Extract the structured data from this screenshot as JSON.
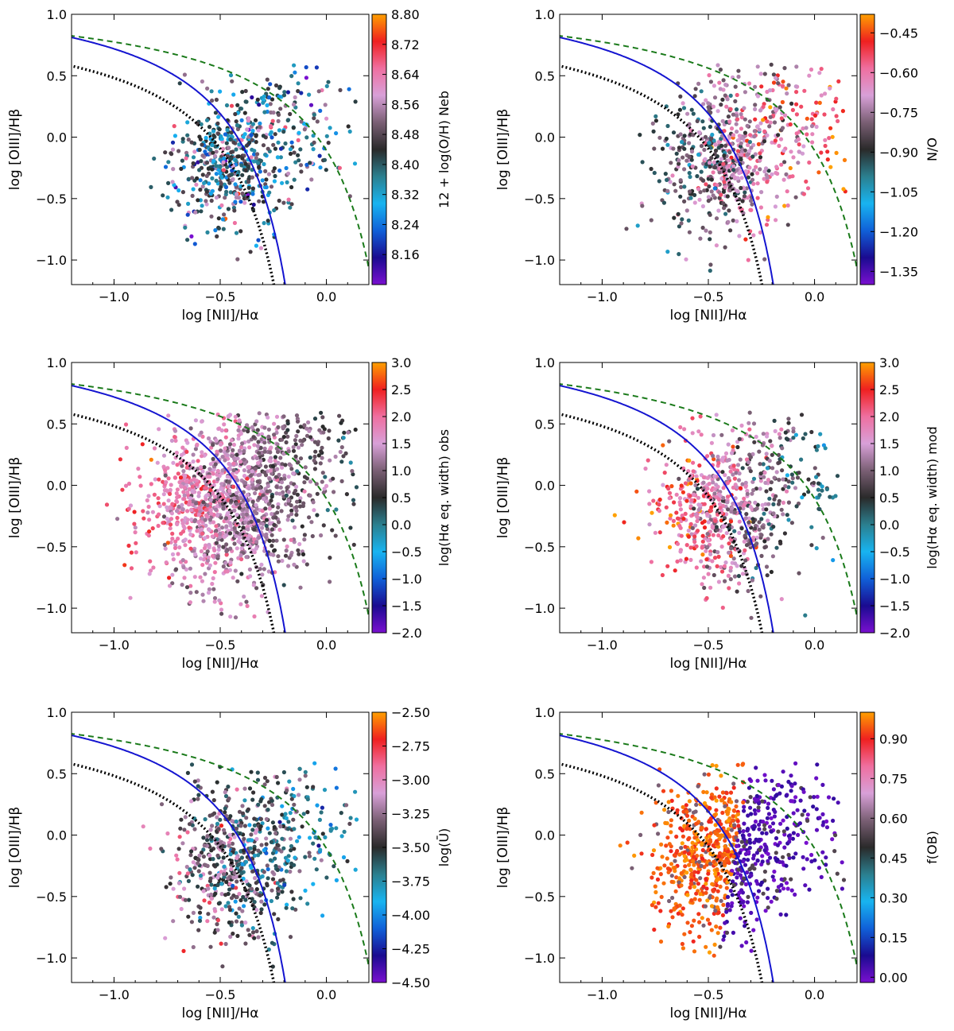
{
  "figure": {
    "xlabel": "log [NII]/Hα",
    "ylabel": "log [OIII]/Hβ"
  },
  "colormap": [
    "#7a10d0",
    "#1a0b90",
    "#1060d8",
    "#18b4f0",
    "#2b7f8f",
    "#2a2a2a",
    "#7a5f74",
    "#d8a0d8",
    "#ef6fa0",
    "#ef2020",
    "#ffa000"
  ],
  "chart_data": [
    {
      "id": "panel-oh",
      "type": "scatter",
      "title": "",
      "xlabel": "log [NII]/Hα",
      "ylabel": "log [OIII]/Hβ",
      "xlim": [
        -1.2,
        0.2
      ],
      "ylim": [
        -1.2,
        1.0
      ],
      "xticks": [
        -1.0,
        -0.5,
        0.0
      ],
      "xtick_labels": [
        "−1.0",
        "−0.5",
        "0.0"
      ],
      "yticks": [
        1.0,
        0.5,
        0.0,
        -0.5,
        -1.0
      ],
      "ytick_labels": [
        "1.0",
        "0.5",
        "0.0",
        "−0.5",
        "−1.0"
      ],
      "colorbar": {
        "label": "12 + log(O/H) Neb",
        "range": [
          8.08,
          8.8
        ],
        "ticks": [
          8.8,
          8.72,
          8.64,
          8.56,
          8.48,
          8.4,
          8.32,
          8.24,
          8.16
        ],
        "tick_labels": [
          "8.80",
          "8.72",
          "8.64",
          "8.56",
          "8.48",
          "8.40",
          "8.32",
          "8.24",
          "8.16"
        ]
      },
      "distribution": {
        "n": 650,
        "x_mean": -0.45,
        "x_sd": 0.13,
        "y_mean": -0.22,
        "y_sd": 0.28,
        "color_mean": 0.47,
        "color_sd": 0.16,
        "color_trend": 0.0
      },
      "curves": [
        "kewley",
        "kauffmann",
        "stasinska"
      ]
    },
    {
      "id": "panel-no",
      "type": "scatter",
      "title": "",
      "xlabel": "log [NII]/Hα",
      "ylabel": "log [OIII]/Hβ",
      "xlim": [
        -1.2,
        0.2
      ],
      "ylim": [
        -1.2,
        1.0
      ],
      "xticks": [
        -1.0,
        -0.5,
        0.0
      ],
      "xtick_labels": [
        "−1.0",
        "−0.5",
        "0.0"
      ],
      "yticks": [
        1.0,
        0.5,
        0.0,
        -0.5,
        -1.0
      ],
      "ytick_labels": [
        "1.0",
        "0.5",
        "0.0",
        "−0.5",
        "−1.0"
      ],
      "colorbar": {
        "label": "N/O",
        "range": [
          -1.4,
          -0.38
        ],
        "ticks": [
          -0.45,
          -0.6,
          -0.75,
          -0.9,
          -1.05,
          -1.2,
          -1.35
        ],
        "tick_labels": [
          "−0.45",
          "−0.60",
          "−0.75",
          "−0.90",
          "−1.05",
          "−1.20",
          "−1.35"
        ]
      },
      "distribution": {
        "n": 750,
        "x_mean": -0.43,
        "x_sd": 0.15,
        "y_mean": -0.2,
        "y_sd": 0.3,
        "color_mean": 0.62,
        "color_sd": 0.12,
        "color_trend": 0.9
      },
      "curves": [
        "kewley",
        "kauffmann",
        "stasinska"
      ]
    },
    {
      "id": "panel-ew-obs",
      "type": "scatter",
      "title": "",
      "xlabel": "log [NII]/Hα",
      "ylabel": "log [OIII]/Hβ",
      "xlim": [
        -1.2,
        0.2
      ],
      "ylim": [
        -1.2,
        1.0
      ],
      "xticks": [
        -1.0,
        -0.5,
        0.0
      ],
      "xtick_labels": [
        "−1.0",
        "−0.5",
        "0.0"
      ],
      "yticks": [
        1.0,
        0.5,
        0.0,
        -0.5,
        -1.0
      ],
      "ytick_labels": [
        "1.0",
        "0.5",
        "0.0",
        "−0.5",
        "−1.0"
      ],
      "colorbar": {
        "label": "log(Hα eq. width) obs",
        "range": [
          -2.0,
          3.0
        ],
        "ticks": [
          3.0,
          2.5,
          2.0,
          1.5,
          1.0,
          0.5,
          0.0,
          -0.5,
          -1.0,
          -1.5,
          -2.0
        ],
        "tick_labels": [
          "3.0",
          "2.5",
          "2.0",
          "1.5",
          "1.0",
          "0.5",
          "0.0",
          "−0.5",
          "−1.0",
          "−1.5",
          "−2.0"
        ]
      },
      "distribution": {
        "n": 1500,
        "x_mean": -0.48,
        "x_sd": 0.18,
        "y_mean": -0.15,
        "y_sd": 0.33,
        "color_mean": 0.68,
        "color_sd": 0.07,
        "color_trend": -0.55
      },
      "curves": [
        "kewley",
        "kauffmann",
        "stasinska"
      ]
    },
    {
      "id": "panel-ew-mod",
      "type": "scatter",
      "title": "",
      "xlabel": "log [NII]/Hα",
      "ylabel": "log [OIII]/Hβ",
      "xlim": [
        -1.2,
        0.2
      ],
      "ylim": [
        -1.2,
        1.0
      ],
      "xticks": [
        -1.0,
        -0.5,
        0.0
      ],
      "xtick_labels": [
        "−1.0",
        "−0.5",
        "0.0"
      ],
      "yticks": [
        1.0,
        0.5,
        0.0,
        -0.5,
        -1.0
      ],
      "ytick_labels": [
        "1.0",
        "0.5",
        "0.0",
        "−0.5",
        "−1.0"
      ],
      "colorbar": {
        "label": "log(Hα eq. width) mod",
        "range": [
          -2.0,
          3.0
        ],
        "ticks": [
          3.0,
          2.5,
          2.0,
          1.5,
          1.0,
          0.5,
          0.0,
          -0.5,
          -1.0,
          -1.5,
          -2.0
        ],
        "tick_labels": [
          "3.0",
          "2.5",
          "2.0",
          "1.5",
          "1.0",
          "0.5",
          "0.0",
          "−0.5",
          "−1.0",
          "−1.5",
          "−2.0"
        ]
      },
      "distribution": {
        "n": 750,
        "x_mean": -0.45,
        "x_sd": 0.15,
        "y_mean": -0.2,
        "y_sd": 0.3,
        "color_mean": 0.72,
        "color_sd": 0.1,
        "color_trend": -1.1
      },
      "curves": [
        "kewley",
        "kauffmann",
        "stasinska"
      ]
    },
    {
      "id": "panel-u",
      "type": "scatter",
      "title": "",
      "xlabel": "log [NII]/Hα",
      "ylabel": "log [OIII]/Hβ",
      "xlim": [
        -1.2,
        0.2
      ],
      "ylim": [
        -1.2,
        1.0
      ],
      "xticks": [
        -1.0,
        -0.5,
        0.0
      ],
      "xtick_labels": [
        "−1.0",
        "−0.5",
        "0.0"
      ],
      "yticks": [
        1.0,
        0.5,
        0.0,
        -0.5,
        -1.0
      ],
      "ytick_labels": [
        "1.0",
        "0.5",
        "0.0",
        "−0.5",
        "−1.0"
      ],
      "colorbar": {
        "label": "log(Ū)",
        "range": [
          -4.5,
          -2.5
        ],
        "ticks": [
          -2.5,
          -2.75,
          -3.0,
          -3.25,
          -3.5,
          -3.75,
          -4.0,
          -4.25,
          -4.5
        ],
        "tick_labels": [
          "−2.50",
          "−2.75",
          "−3.00",
          "−3.25",
          "−3.50",
          "−3.75",
          "−4.00",
          "−4.25",
          "−4.50"
        ]
      },
      "distribution": {
        "n": 700,
        "x_mean": -0.43,
        "x_sd": 0.15,
        "y_mean": -0.22,
        "y_sd": 0.3,
        "color_mean": 0.55,
        "color_sd": 0.12,
        "color_trend": -0.7
      },
      "curves": [
        "kewley",
        "kauffmann",
        "stasinska"
      ]
    },
    {
      "id": "panel-fob",
      "type": "scatter",
      "title": "",
      "xlabel": "log [NII]/Hα",
      "ylabel": "log [OIII]/Hβ",
      "xlim": [
        -1.2,
        0.2
      ],
      "ylim": [
        -1.2,
        1.0
      ],
      "xticks": [
        -1.0,
        -0.5,
        0.0
      ],
      "xtick_labels": [
        "−1.0",
        "−0.5",
        "0.0"
      ],
      "yticks": [
        1.0,
        0.5,
        0.0,
        -0.5,
        -1.0
      ],
      "ytick_labels": [
        "1.0",
        "0.5",
        "0.0",
        "−0.5",
        "−1.0"
      ],
      "colorbar": {
        "label": "f(OB)",
        "range": [
          -0.02,
          1.0
        ],
        "ticks": [
          0.9,
          0.75,
          0.6,
          0.45,
          0.3,
          0.15,
          0.0
        ],
        "tick_labels": [
          "0.90",
          "0.75",
          "0.60",
          "0.45",
          "0.30",
          "0.15",
          "0.00"
        ]
      },
      "distribution": {
        "n": 900,
        "x_mean": -0.47,
        "x_sd": 0.15,
        "y_mean": -0.2,
        "y_sd": 0.3,
        "color_mean": 0.55,
        "color_sd": 0.05,
        "color_trend": -3.0,
        "binary": true
      },
      "curves": [
        "kewley",
        "kauffmann",
        "stasinska"
      ]
    }
  ]
}
